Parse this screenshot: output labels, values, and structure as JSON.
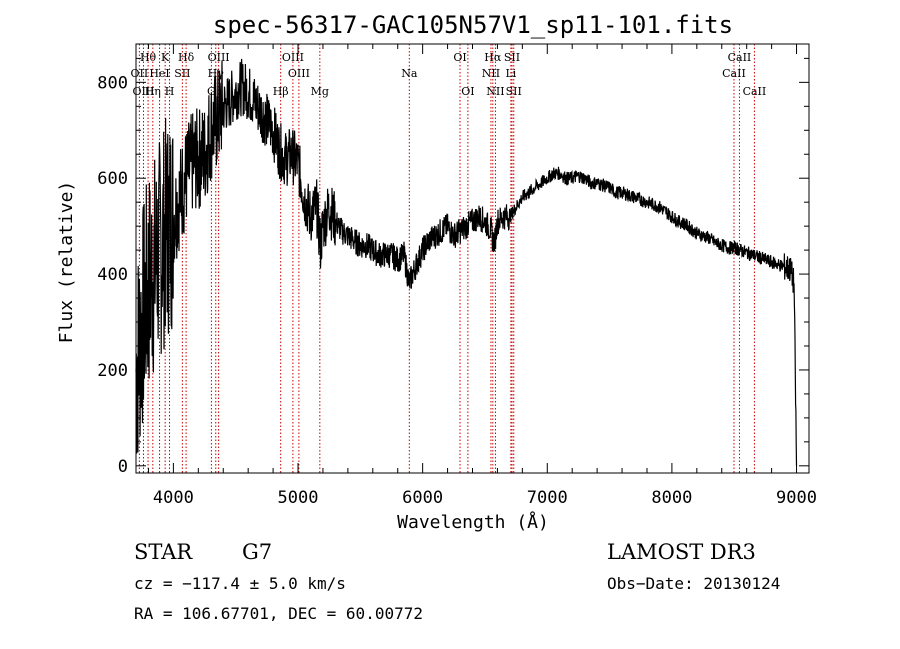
{
  "chart_data": {
    "type": "line",
    "title": "spec-56317-GAC105N57V1_sp11-101.fits",
    "xlabel": "Wavelength (Å)",
    "ylabel": "Flux (relative)",
    "xlim": [
      3700,
      9100
    ],
    "ylim": [
      -15,
      880
    ],
    "xticks": [
      4000,
      5000,
      6000,
      7000,
      8000,
      9000
    ],
    "yticks": [
      0,
      200,
      400,
      600,
      800
    ],
    "grid": false,
    "series": [
      {
        "name": "flux",
        "x": [
          3700,
          3760,
          3800,
          3850,
          3900,
          3950,
          4000,
          4050,
          4100,
          4150,
          4200,
          4250,
          4300,
          4350,
          4400,
          4450,
          4500,
          4550,
          4600,
          4650,
          4700,
          4750,
          4800,
          4850,
          4900,
          4950,
          5000,
          5050,
          5100,
          5150,
          5180,
          5200,
          5250,
          5300,
          5350,
          5400,
          5450,
          5500,
          5550,
          5600,
          5650,
          5700,
          5750,
          5800,
          5850,
          5893,
          5920,
          5950,
          6000,
          6050,
          6100,
          6150,
          6200,
          6250,
          6300,
          6350,
          6400,
          6450,
          6500,
          6550,
          6563,
          6580,
          6600,
          6650,
          6700,
          6750,
          6800,
          6850,
          6900,
          6950,
          7000,
          7050,
          7100,
          7150,
          7200,
          7250,
          7300,
          7350,
          7400,
          7450,
          7500,
          7550,
          7600,
          7650,
          7700,
          7750,
          7800,
          7850,
          7900,
          7950,
          8000,
          8050,
          8100,
          8150,
          8200,
          8250,
          8300,
          8350,
          8400,
          8450,
          8500,
          8550,
          8600,
          8650,
          8700,
          8750,
          8800,
          8850,
          8900,
          8950,
          8980,
          9000
        ],
        "y": [
          200,
          320,
          380,
          420,
          460,
          500,
          520,
          560,
          600,
          630,
          640,
          650,
          700,
          720,
          750,
          760,
          780,
          790,
          780,
          760,
          740,
          720,
          700,
          660,
          640,
          650,
          630,
          560,
          520,
          540,
          460,
          500,
          540,
          510,
          490,
          480,
          470,
          460,
          460,
          450,
          440,
          440,
          440,
          430,
          440,
          380,
          400,
          420,
          450,
          470,
          480,
          490,
          500,
          480,
          490,
          500,
          510,
          520,
          510,
          490,
          470,
          470,
          510,
          520,
          520,
          540,
          560,
          570,
          580,
          590,
          600,
          610,
          610,
          600,
          600,
          605,
          600,
          590,
          590,
          585,
          580,
          570,
          570,
          565,
          560,
          555,
          550,
          545,
          540,
          530,
          520,
          510,
          505,
          495,
          485,
          480,
          475,
          465,
          460,
          455,
          455,
          450,
          445,
          440,
          435,
          430,
          425,
          420,
          415,
          410,
          380,
          0
        ]
      }
    ],
    "lines": [
      {
        "label": "Hθ",
        "x": 3797,
        "row": 0
      },
      {
        "label": "K",
        "x": 3934,
        "row": 0
      },
      {
        "label": "Hδ",
        "x": 4102,
        "row": 0
      },
      {
        "label": "OIII",
        "x": 4363,
        "row": 0
      },
      {
        "label": "OIII",
        "x": 4959,
        "row": 0
      },
      {
        "label": "OI",
        "x": 6300,
        "row": 0
      },
      {
        "label": "Hα",
        "x": 6563,
        "row": 0
      },
      {
        "label": "SII",
        "x": 6717,
        "row": 0
      },
      {
        "label": "CaII",
        "x": 8542,
        "row": 0
      },
      {
        "label": "OII",
        "x": 3727,
        "row": 1
      },
      {
        "label": "HeI",
        "x": 3889,
        "row": 1
      },
      {
        "label": "SII",
        "x": 4072,
        "row": 1
      },
      {
        "label": "Hγ",
        "x": 4340,
        "row": 1
      },
      {
        "label": "OIII",
        "x": 5007,
        "row": 1
      },
      {
        "label": "Na",
        "x": 5893,
        "row": 1
      },
      {
        "label": "NII",
        "x": 6548,
        "row": 1
      },
      {
        "label": "Li",
        "x": 6708,
        "row": 1
      },
      {
        "label": "CaII",
        "x": 8498,
        "row": 1
      },
      {
        "label": "OIII",
        "x": 3760,
        "row": 2
      },
      {
        "label": "Hη",
        "x": 3835,
        "row": 2
      },
      {
        "label": "H",
        "x": 3969,
        "row": 2
      },
      {
        "label": "G",
        "x": 4305,
        "row": 2
      },
      {
        "label": "Hβ",
        "x": 4861,
        "row": 2
      },
      {
        "label": "Mg",
        "x": 5175,
        "row": 2
      },
      {
        "label": "OI",
        "x": 6363,
        "row": 2
      },
      {
        "label": "NII",
        "x": 6584,
        "row": 2
      },
      {
        "label": "SII",
        "x": 6731,
        "row": 2
      },
      {
        "label": "CaII",
        "x": 8662,
        "row": 2
      }
    ],
    "line_color": "#cc0000"
  },
  "info": {
    "class_label": "STAR",
    "subclass": "G7",
    "survey": "LAMOST DR3",
    "cz": "cz = −117.4 ± 5.0 km/s",
    "obs_date": "Obs−Date: 20130124",
    "coords": "RA = 106.67701, DEC =  60.00772"
  }
}
